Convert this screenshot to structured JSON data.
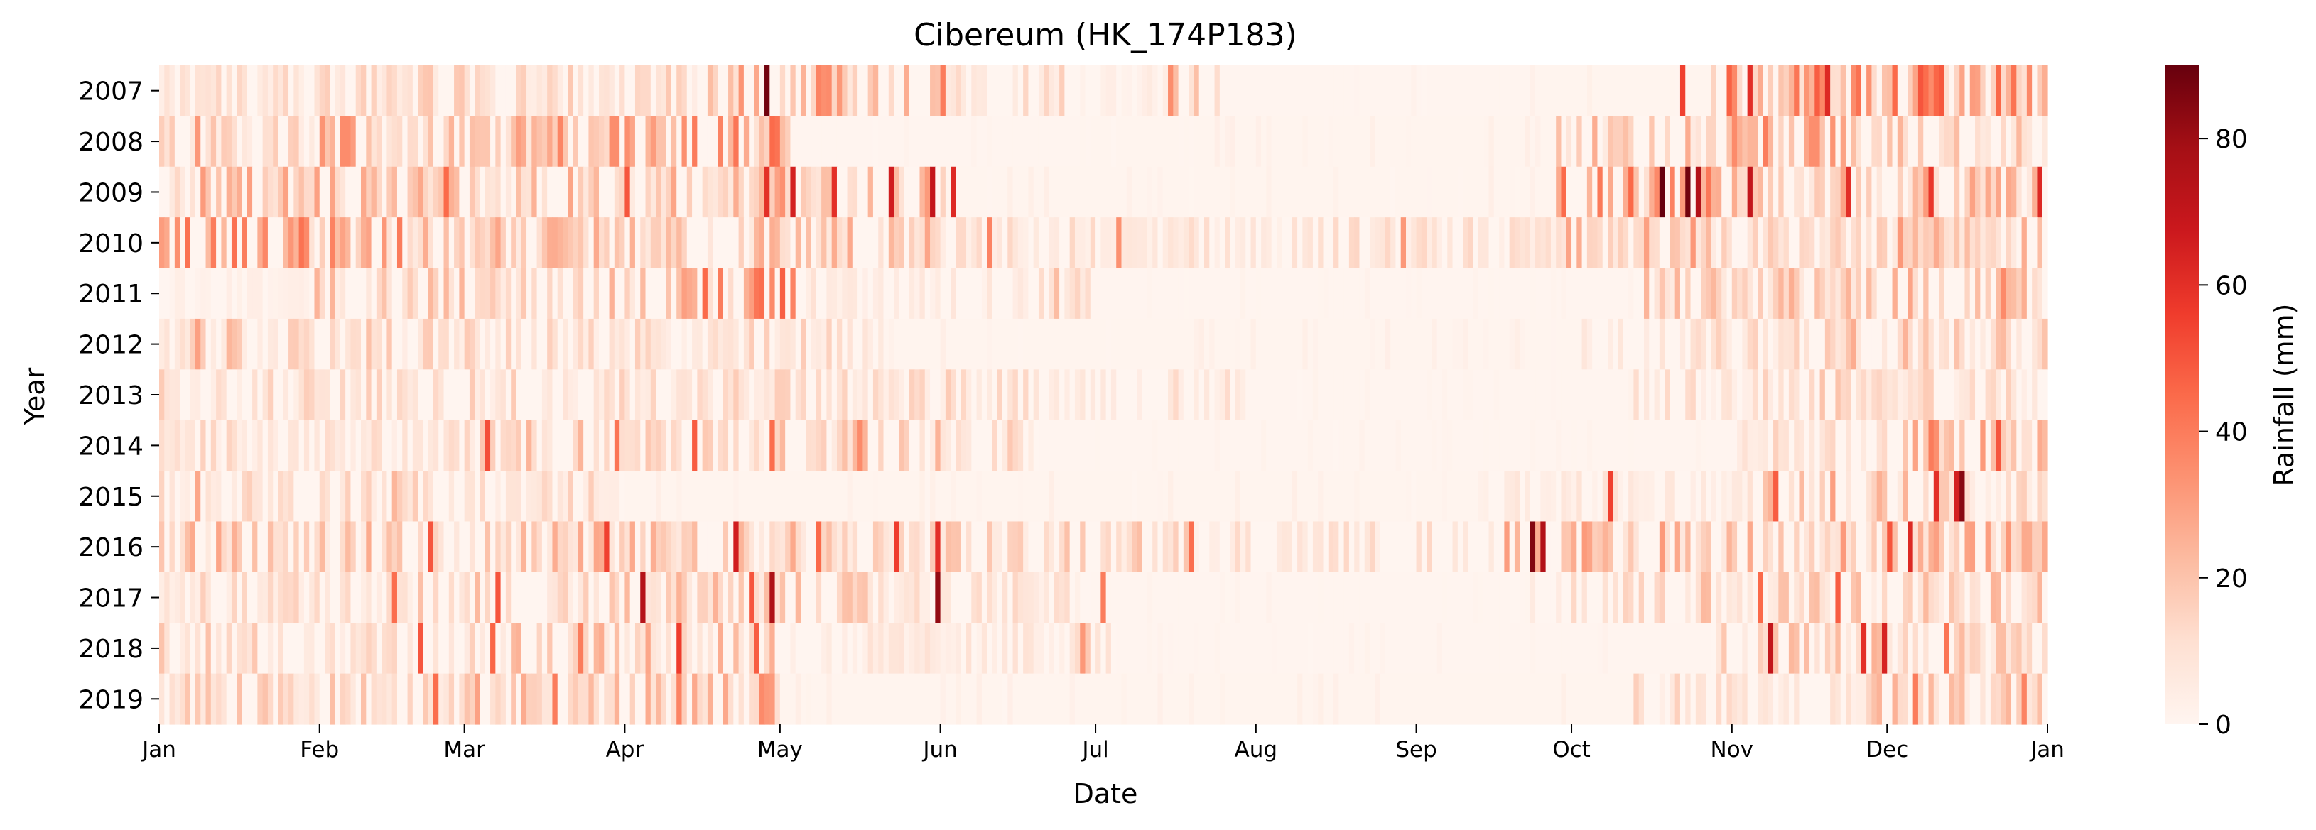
{
  "chart_data": {
    "type": "heatmap",
    "title": "Cibereum  (HK_174P183)",
    "xlabel": "Date",
    "ylabel": "Year",
    "x_tick_labels": [
      "Jan",
      "Feb",
      "Mar",
      "Apr",
      "May",
      "Jun",
      "Jul",
      "Aug",
      "Sep",
      "Oct",
      "Nov",
      "Dec",
      "Jan"
    ],
    "years": [
      "2007",
      "2008",
      "2009",
      "2010",
      "2011",
      "2012",
      "2013",
      "2014",
      "2015",
      "2016",
      "2017",
      "2018",
      "2019"
    ],
    "colorbar": {
      "label": "Rainfall (mm)",
      "range": [
        0,
        90
      ],
      "ticks": [
        "0",
        "20",
        "40",
        "60",
        "80"
      ],
      "colormap": "Reds"
    },
    "days_per_row": 365,
    "rows": [
      {
        "year": "2007",
        "active": [
          [
            0,
            105,
            11
          ],
          [
            105,
            130,
            22
          ],
          [
            130,
            152,
            18
          ],
          [
            152,
            177,
            10
          ],
          [
            177,
            195,
            4
          ],
          [
            195,
            205,
            22
          ],
          [
            205,
            265,
            1
          ],
          [
            265,
            300,
            2
          ],
          [
            300,
            345,
            28
          ],
          [
            345,
            365,
            30
          ]
        ],
        "peaks": [
          [
            117,
            88
          ],
          [
            151,
            40
          ],
          [
            294,
            55
          ],
          [
            307,
            60
          ],
          [
            322,
            62
          ],
          [
            320,
            48
          ],
          [
            340,
            50
          ]
        ]
      },
      {
        "year": "2008",
        "active": [
          [
            0,
            30,
            12
          ],
          [
            30,
            70,
            20
          ],
          [
            70,
            108,
            22
          ],
          [
            108,
            122,
            26
          ],
          [
            122,
            180,
            1
          ],
          [
            180,
            270,
            2
          ],
          [
            270,
            300,
            16
          ],
          [
            300,
            330,
            24
          ],
          [
            330,
            365,
            14
          ]
        ],
        "peaks": [
          [
            7,
            32
          ],
          [
            103,
            40
          ],
          [
            108,
            38
          ],
          [
            320,
            35
          ]
        ]
      },
      {
        "year": "2009",
        "active": [
          [
            0,
            50,
            18
          ],
          [
            50,
            118,
            16
          ],
          [
            118,
            152,
            24
          ],
          [
            152,
            270,
            2
          ],
          [
            270,
            310,
            26
          ],
          [
            310,
            365,
            18
          ]
        ],
        "peaks": [
          [
            55,
            45
          ],
          [
            90,
            50
          ],
          [
            117,
            60
          ],
          [
            122,
            65
          ],
          [
            130,
            60
          ],
          [
            141,
            66
          ],
          [
            149,
            70
          ],
          [
            153,
            62
          ],
          [
            290,
            90
          ],
          [
            295,
            88
          ],
          [
            297,
            75
          ],
          [
            307,
            70
          ],
          [
            326,
            60
          ],
          [
            342,
            58
          ],
          [
            363,
            62
          ]
        ]
      },
      {
        "year": "2010",
        "active": [
          [
            0,
            45,
            24
          ],
          [
            45,
            150,
            16
          ],
          [
            150,
            270,
            8
          ],
          [
            270,
            365,
            16
          ]
        ],
        "peaks": [
          [
            10,
            40
          ],
          [
            28,
            36
          ],
          [
            46,
            40
          ],
          [
            160,
            38
          ],
          [
            185,
            34
          ],
          [
            240,
            32
          ],
          [
            287,
            30
          ],
          [
            296,
            32
          ],
          [
            336,
            32
          ]
        ]
      },
      {
        "year": "2011",
        "active": [
          [
            0,
            30,
            3
          ],
          [
            30,
            100,
            14
          ],
          [
            100,
            125,
            28
          ],
          [
            125,
            170,
            6
          ],
          [
            170,
            180,
            10
          ],
          [
            180,
            285,
            1
          ],
          [
            285,
            365,
            16
          ]
        ],
        "peaks": [
          [
            108,
            40
          ],
          [
            118,
            36
          ],
          [
            122,
            38
          ],
          [
            173,
            22
          ],
          [
            356,
            36
          ]
        ]
      },
      {
        "year": "2012",
        "active": [
          [
            0,
            55,
            12
          ],
          [
            55,
            140,
            10
          ],
          [
            140,
            275,
            2
          ],
          [
            275,
            320,
            10
          ],
          [
            320,
            335,
            16
          ],
          [
            335,
            365,
            14
          ]
        ],
        "peaks": [
          [
            7,
            30
          ],
          [
            13,
            24
          ],
          [
            52,
            18
          ],
          [
            326,
            20
          ]
        ]
      },
      {
        "year": "2013",
        "active": [
          [
            0,
            175,
            10
          ],
          [
            175,
            210,
            8
          ],
          [
            210,
            285,
            1
          ],
          [
            285,
            310,
            8
          ],
          [
            310,
            330,
            14
          ],
          [
            330,
            365,
            10
          ]
        ],
        "peaks": [
          [
            21,
            16
          ],
          [
            60,
            18
          ],
          [
            145,
            16
          ],
          [
            167,
            14
          ],
          [
            310,
            16
          ]
        ]
      },
      {
        "year": "2014",
        "active": [
          [
            0,
            60,
            9
          ],
          [
            60,
            170,
            14
          ],
          [
            170,
            305,
            1
          ],
          [
            305,
            335,
            10
          ],
          [
            335,
            365,
            20
          ]
        ],
        "peaks": [
          [
            63,
            52
          ],
          [
            88,
            42
          ],
          [
            103,
            48
          ],
          [
            118,
            44
          ],
          [
            135,
            36
          ],
          [
            342,
            40
          ],
          [
            355,
            50
          ]
        ]
      },
      {
        "year": "2015",
        "active": [
          [
            0,
            90,
            10
          ],
          [
            90,
            255,
            2
          ],
          [
            255,
            310,
            6
          ],
          [
            310,
            345,
            18
          ],
          [
            345,
            365,
            12
          ]
        ],
        "peaks": [
          [
            7,
            28
          ],
          [
            45,
            24
          ],
          [
            280,
            55
          ],
          [
            312,
            48
          ],
          [
            343,
            60
          ],
          [
            347,
            65
          ],
          [
            348,
            84
          ]
        ]
      },
      {
        "year": "2016",
        "active": [
          [
            0,
            130,
            16
          ],
          [
            130,
            200,
            12
          ],
          [
            200,
            260,
            8
          ],
          [
            260,
            365,
            18
          ]
        ],
        "peaks": [
          [
            52,
            50
          ],
          [
            86,
            55
          ],
          [
            111,
            66
          ],
          [
            127,
            45
          ],
          [
            142,
            56
          ],
          [
            150,
            60
          ],
          [
            199,
            44
          ],
          [
            265,
            85
          ],
          [
            267,
            75
          ],
          [
            334,
            50
          ],
          [
            338,
            62
          ]
        ]
      },
      {
        "year": "2017",
        "active": [
          [
            0,
            50,
            10
          ],
          [
            50,
            140,
            14
          ],
          [
            140,
            180,
            8
          ],
          [
            180,
            265,
            1
          ],
          [
            265,
            365,
            14
          ]
        ],
        "peaks": [
          [
            45,
            44
          ],
          [
            65,
            50
          ],
          [
            93,
            74
          ],
          [
            114,
            50
          ],
          [
            118,
            76
          ],
          [
            150,
            82
          ],
          [
            182,
            40
          ],
          [
            309,
            45
          ],
          [
            324,
            48
          ]
        ]
      },
      {
        "year": "2018",
        "active": [
          [
            0,
            60,
            12
          ],
          [
            60,
            120,
            16
          ],
          [
            120,
            175,
            6
          ],
          [
            175,
            185,
            20
          ],
          [
            185,
            300,
            1
          ],
          [
            300,
            365,
            16
          ]
        ],
        "peaks": [
          [
            50,
            50
          ],
          [
            64,
            46
          ],
          [
            81,
            40
          ],
          [
            100,
            56
          ],
          [
            115,
            48
          ],
          [
            178,
            32
          ],
          [
            311,
            70
          ],
          [
            329,
            60
          ],
          [
            333,
            64
          ],
          [
            345,
            42
          ]
        ]
      },
      {
        "year": "2019",
        "active": [
          [
            0,
            60,
            12
          ],
          [
            60,
            120,
            18
          ],
          [
            120,
            285,
            2
          ],
          [
            285,
            300,
            10
          ],
          [
            300,
            330,
            8
          ],
          [
            330,
            365,
            14
          ]
        ],
        "peaks": [
          [
            53,
            44
          ],
          [
            76,
            40
          ],
          [
            100,
            38
          ],
          [
            116,
            36
          ],
          [
            339,
            40
          ],
          [
            360,
            38
          ]
        ]
      }
    ]
  }
}
